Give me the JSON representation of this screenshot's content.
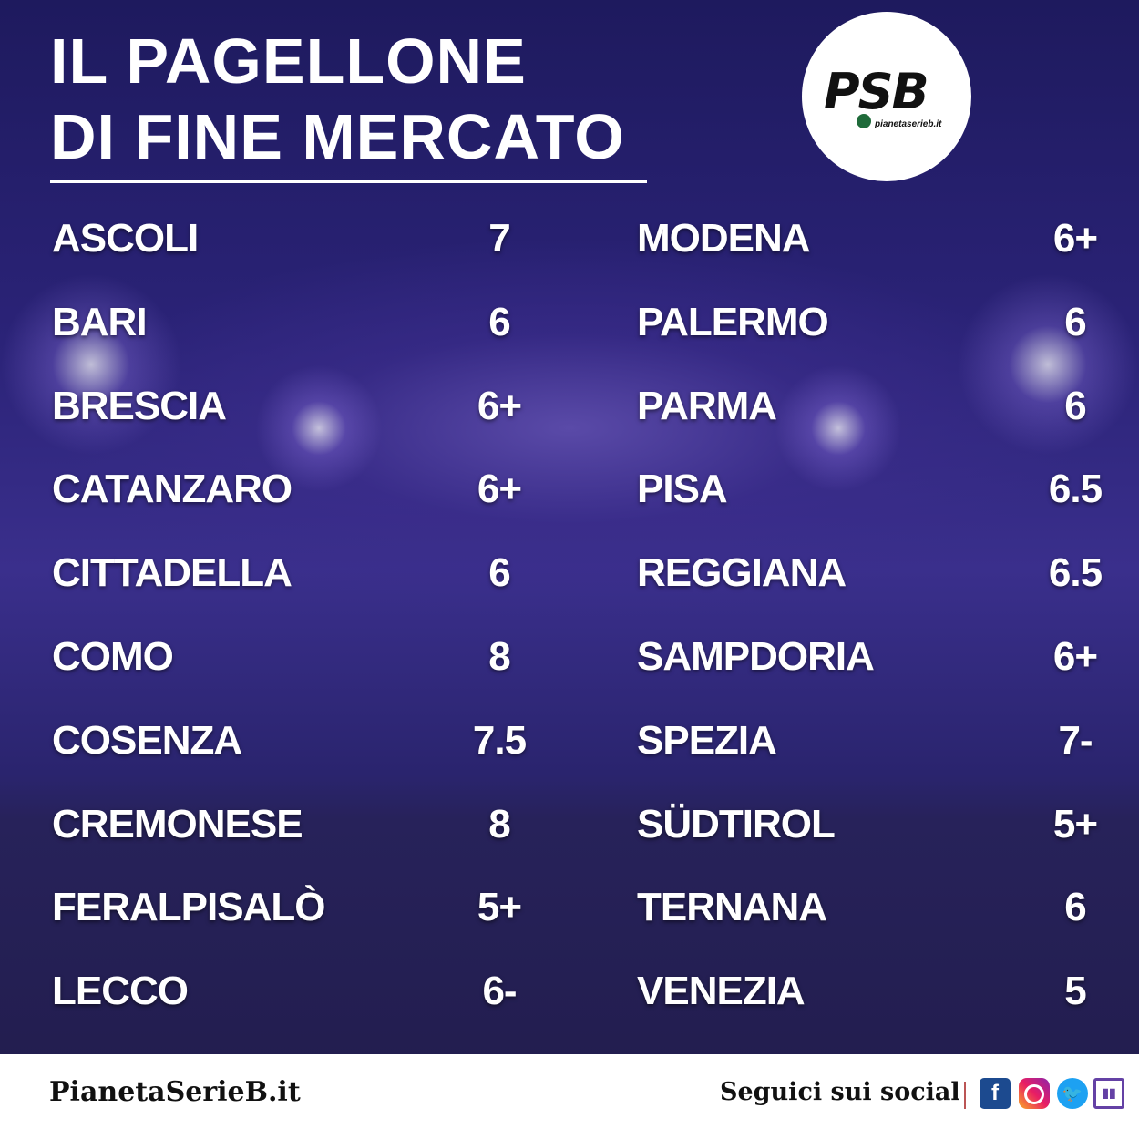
{
  "header": {
    "title_line1": "IL PAGELLONE",
    "title_line2": "DI FINE MERCATO",
    "logo_text": "PSB",
    "logo_subtext": "pianetaserieb.it"
  },
  "left_column": [
    {
      "team": "ASCOLI",
      "grade": "7"
    },
    {
      "team": "BARI",
      "grade": "6"
    },
    {
      "team": "BRESCIA",
      "grade": "6+"
    },
    {
      "team": "CATANZARO",
      "grade": "6+"
    },
    {
      "team": "CITTADELLA",
      "grade": "6"
    },
    {
      "team": "COMO",
      "grade": "8"
    },
    {
      "team": "COSENZA",
      "grade": "7.5"
    },
    {
      "team": "CREMONESE",
      "grade": "8"
    },
    {
      "team": "FERALPISALÒ",
      "grade": "5+"
    },
    {
      "team": "LECCO",
      "grade": "6-"
    }
  ],
  "right_column": [
    {
      "team": "MODENA",
      "grade": "6+"
    },
    {
      "team": "PALERMO",
      "grade": "6"
    },
    {
      "team": "PARMA",
      "grade": "6"
    },
    {
      "team": "PISA",
      "grade": "6.5"
    },
    {
      "team": "REGGIANA",
      "grade": "6.5"
    },
    {
      "team": "SAMPDORIA",
      "grade": "6+"
    },
    {
      "team": "SPEZIA",
      "grade": "7-"
    },
    {
      "team": "SÜDTIROL",
      "grade": "5+"
    },
    {
      "team": "TERNANA",
      "grade": "6"
    },
    {
      "team": "VENEZIA",
      "grade": "5"
    }
  ],
  "footer": {
    "site": "PianetaSerieB.it",
    "follow_text": "Seguici sui social",
    "social_icons": [
      "facebook-icon",
      "instagram-icon",
      "twitter-icon",
      "twitch-icon"
    ]
  },
  "colors": {
    "background": "#2b2378",
    "text": "#ffffff",
    "footer_bg": "#ffffff",
    "facebook": "#1c4a8f",
    "twitter": "#1da1f2",
    "twitch": "#6441a5"
  }
}
